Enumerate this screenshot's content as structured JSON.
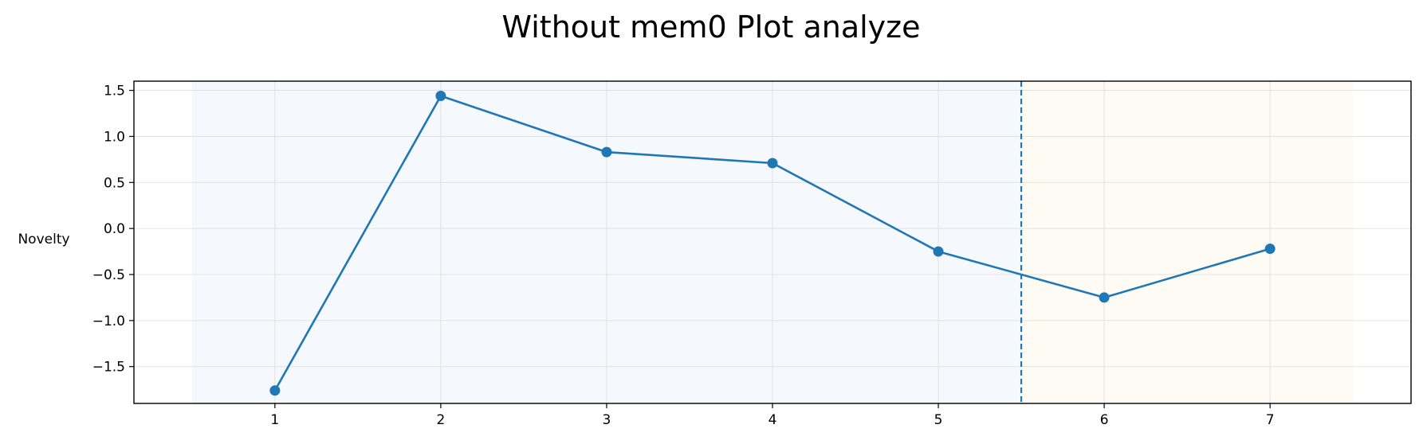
{
  "chart_data": {
    "type": "line",
    "title": "Without mem0 Plot analyze",
    "xlabel": "",
    "ylabel": "Novelty",
    "x": [
      1,
      2,
      3,
      4,
      5,
      6,
      7
    ],
    "xticks": [
      1,
      2,
      3,
      4,
      5,
      6,
      7
    ],
    "xlim": [
      0.15,
      7.85
    ],
    "ylim": [
      -1.9,
      1.6
    ],
    "yticks": [
      -1.5,
      -1.0,
      -0.5,
      0.0,
      0.5,
      1.0,
      1.5
    ],
    "ytick_labels": [
      "−1.5",
      "−1.0",
      "−0.5",
      "0.0",
      "0.5",
      "1.0",
      "1.5"
    ],
    "series": [
      {
        "values": [
          -1.76,
          1.44,
          0.83,
          0.71,
          -0.25,
          -0.75,
          -0.22
        ]
      }
    ],
    "grid": true,
    "shaded_regions": [
      {
        "x_start": 0.5,
        "x_end": 5.5,
        "color": "#f5f8fc"
      },
      {
        "x_start": 5.5,
        "x_end": 7.5,
        "color": "#fefaf4"
      }
    ],
    "vertical_line": {
      "x": 5.5,
      "style": "dashed",
      "color": "#1f77b4"
    },
    "line_color": "#1f77b4"
  }
}
